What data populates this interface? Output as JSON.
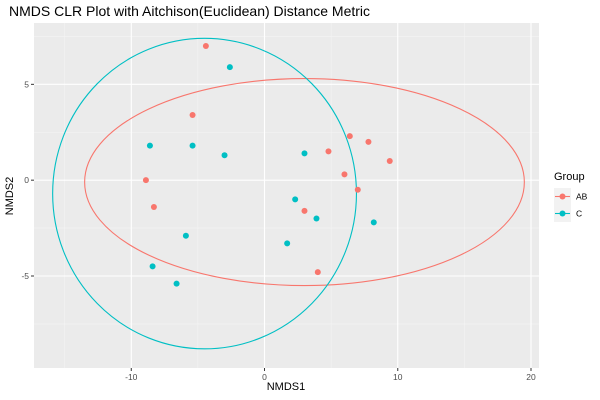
{
  "chart_data": {
    "type": "scatter",
    "title": "NMDS CLR Plot with Aitchison(Euclidean) Distance Metric",
    "xlabel": "NMDS1",
    "ylabel": "NMDS2",
    "xlim": [
      -17.3,
      20.6
    ],
    "ylim": [
      -9.8,
      8.2
    ],
    "xticks": [
      -10,
      0,
      10,
      20
    ],
    "xtick_labels": [
      "-10",
      "0",
      "10",
      "20"
    ],
    "yticks": [
      -5,
      0,
      5
    ],
    "ytick_labels": [
      "-5",
      "0",
      "5"
    ],
    "grid": true,
    "legend": {
      "title": "Group",
      "placement": "right",
      "entries": [
        {
          "label": "AB",
          "color": "#F8766D"
        },
        {
          "label": "C",
          "color": "#00BFC4"
        }
      ]
    },
    "series": [
      {
        "name": "AB",
        "color": "#F8766D",
        "points": [
          [
            -4.4,
            7.0
          ],
          [
            -5.4,
            3.4
          ],
          [
            -8.9,
            0.0
          ],
          [
            -8.3,
            -1.4
          ],
          [
            4.8,
            1.5
          ],
          [
            6.4,
            2.3
          ],
          [
            7.8,
            2.0
          ],
          [
            9.4,
            1.0
          ],
          [
            6.0,
            0.3
          ],
          [
            7.0,
            -0.5
          ],
          [
            3.0,
            -1.6
          ],
          [
            4.0,
            -4.8
          ]
        ],
        "ellipse": {
          "center": [
            3.0,
            -0.1
          ],
          "semi_axes": [
            16.5,
            5.4
          ]
        }
      },
      {
        "name": "C",
        "color": "#00BFC4",
        "points": [
          [
            -2.6,
            5.9
          ],
          [
            -8.6,
            1.8
          ],
          [
            -5.4,
            1.8
          ],
          [
            -3.0,
            1.3
          ],
          [
            3.0,
            1.4
          ],
          [
            2.3,
            -1.0
          ],
          [
            3.9,
            -2.0
          ],
          [
            8.2,
            -2.2
          ],
          [
            1.7,
            -3.3
          ],
          [
            -5.9,
            -2.9
          ],
          [
            -8.4,
            -4.5
          ],
          [
            -6.6,
            -5.4
          ]
        ],
        "ellipse": {
          "center": [
            -4.5,
            -0.7
          ],
          "semi_axes": [
            11.4,
            8.1
          ]
        }
      }
    ]
  }
}
